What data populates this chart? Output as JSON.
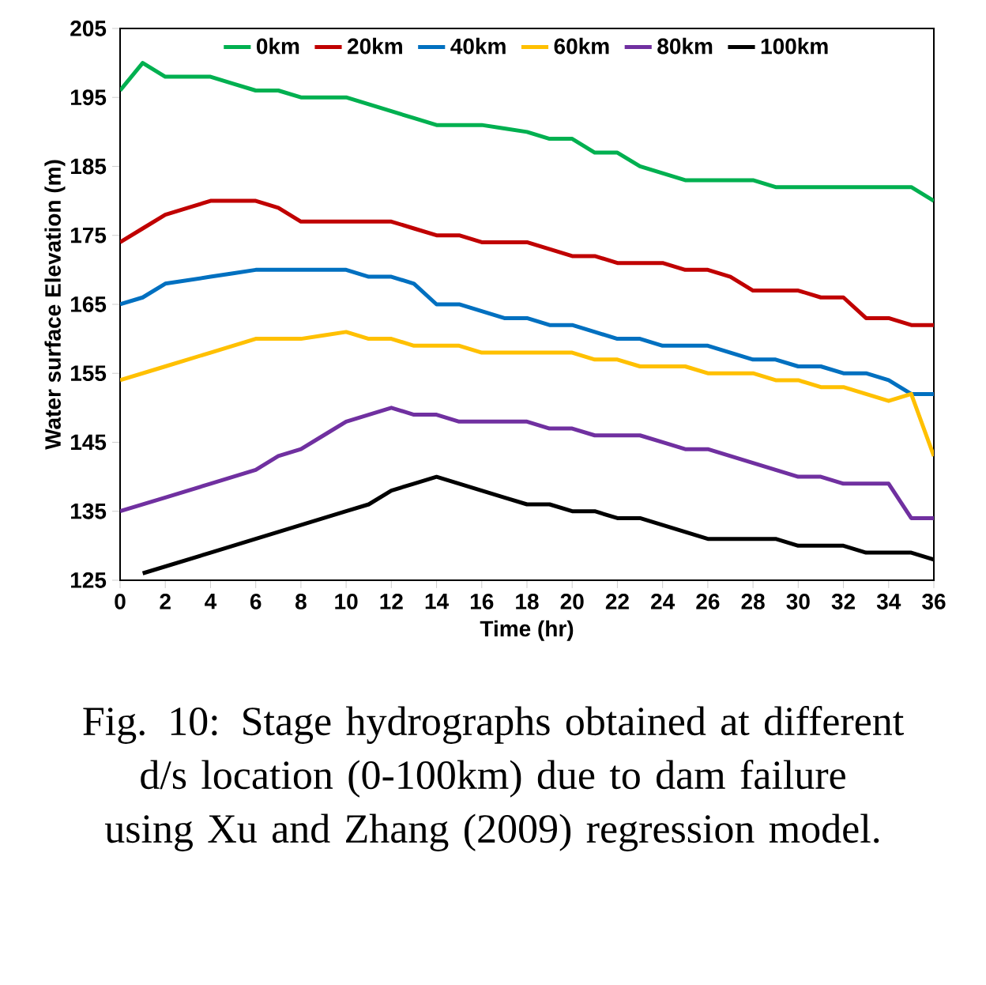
{
  "chart_data": {
    "type": "line",
    "xlabel": "Time (hr)",
    "ylabel": "Water surface Elevation (m)",
    "xlim": [
      0,
      36
    ],
    "ylim": [
      125,
      205
    ],
    "xticks": [
      0,
      2,
      4,
      6,
      8,
      10,
      12,
      14,
      16,
      18,
      20,
      22,
      24,
      26,
      28,
      30,
      32,
      34,
      36
    ],
    "yticks": [
      125,
      135,
      145,
      155,
      165,
      175,
      185,
      195,
      205
    ],
    "grid": false,
    "legend": "top",
    "annotations": [
      "Fig. 10: Stage hydrographs obtained at different d/s location (0-100km) due to dam failure using Xu and Zhang (2009) regression model."
    ],
    "series": [
      {
        "name": "0km",
        "color": "#00b050",
        "x": [
          0,
          1,
          2,
          3,
          4,
          5,
          6,
          7,
          8,
          9,
          10,
          11,
          12,
          13,
          14,
          15,
          16,
          17,
          18,
          19,
          20,
          21,
          22,
          23,
          24,
          25,
          26,
          27,
          28,
          29,
          30,
          31,
          32,
          33,
          34,
          35,
          36
        ],
        "values": [
          196,
          200,
          198,
          198,
          198,
          197,
          196,
          196,
          195,
          195,
          195,
          194,
          193,
          192,
          191,
          191,
          191,
          190.5,
          190,
          189,
          189,
          187,
          187,
          185,
          184,
          183,
          183,
          183,
          183,
          182,
          182,
          182,
          182,
          182,
          182,
          182,
          180
        ]
      },
      {
        "name": "20km",
        "color": "#c00000",
        "x": [
          0,
          1,
          2,
          3,
          4,
          5,
          6,
          7,
          8,
          9,
          10,
          11,
          12,
          13,
          14,
          15,
          16,
          17,
          18,
          19,
          20,
          21,
          22,
          23,
          24,
          25,
          26,
          27,
          28,
          29,
          30,
          31,
          32,
          33,
          34,
          35,
          36
        ],
        "values": [
          174,
          176,
          178,
          179,
          180,
          180,
          180,
          179,
          177,
          177,
          177,
          177,
          177,
          176,
          175,
          175,
          174,
          174,
          174,
          173,
          172,
          172,
          171,
          171,
          171,
          170,
          170,
          169,
          167,
          167,
          167,
          166,
          166,
          163,
          163,
          162,
          162
        ]
      },
      {
        "name": "40km",
        "color": "#0070c0",
        "x": [
          0,
          1,
          2,
          3,
          4,
          5,
          6,
          7,
          8,
          9,
          10,
          11,
          12,
          13,
          14,
          15,
          16,
          17,
          18,
          19,
          20,
          21,
          22,
          23,
          24,
          25,
          26,
          27,
          28,
          29,
          30,
          31,
          32,
          33,
          34,
          35,
          36
        ],
        "values": [
          165,
          166,
          168,
          168.5,
          169,
          169.5,
          170,
          170,
          170,
          170,
          170,
          169,
          169,
          168,
          165,
          165,
          164,
          163,
          163,
          162,
          162,
          161,
          160,
          160,
          159,
          159,
          159,
          158,
          157,
          157,
          156,
          156,
          155,
          155,
          154,
          152,
          152
        ]
      },
      {
        "name": "60km",
        "color": "#ffc000",
        "x": [
          0,
          2,
          4,
          6,
          7,
          8,
          9,
          10,
          11,
          12,
          13,
          14,
          15,
          16,
          17,
          18,
          19,
          20,
          21,
          22,
          23,
          24,
          25,
          26,
          27,
          28,
          29,
          30,
          31,
          32,
          33,
          34,
          35,
          36
        ],
        "values": [
          154,
          156,
          158,
          160,
          160,
          160,
          160.5,
          161,
          160,
          160,
          159,
          159,
          159,
          158,
          158,
          158,
          158,
          158,
          157,
          157,
          156,
          156,
          156,
          155,
          155,
          155,
          154,
          154,
          153,
          153,
          152,
          151,
          152,
          143
        ]
      },
      {
        "name": "80km",
        "color": "#7030a0",
        "x": [
          0,
          2,
          4,
          6,
          7,
          8,
          9,
          10,
          11,
          12,
          13,
          14,
          15,
          16,
          17,
          18,
          19,
          20,
          21,
          22,
          23,
          24,
          25,
          26,
          27,
          28,
          29,
          30,
          31,
          32,
          33,
          34,
          35,
          36
        ],
        "values": [
          135,
          137,
          139,
          141,
          143,
          144,
          146,
          148,
          149,
          150,
          149,
          149,
          148,
          148,
          148,
          148,
          147,
          147,
          146,
          146,
          146,
          145,
          144,
          144,
          143,
          142,
          141,
          140,
          140,
          139,
          139,
          139,
          134,
          134
        ]
      },
      {
        "name": "100km",
        "color": "#000000",
        "x": [
          1,
          4,
          7,
          10,
          11,
          12,
          13,
          14,
          15,
          16,
          17,
          18,
          19,
          20,
          21,
          22,
          23,
          24,
          25,
          26,
          27,
          28,
          29,
          30,
          31,
          32,
          33,
          34,
          35,
          36
        ],
        "values": [
          126,
          129,
          132,
          135,
          136,
          138,
          139,
          140,
          139,
          138,
          137,
          136,
          136,
          135,
          135,
          134,
          134,
          133,
          132,
          131,
          131,
          131,
          131,
          130,
          130,
          130,
          129,
          129,
          129,
          128
        ]
      }
    ]
  }
}
